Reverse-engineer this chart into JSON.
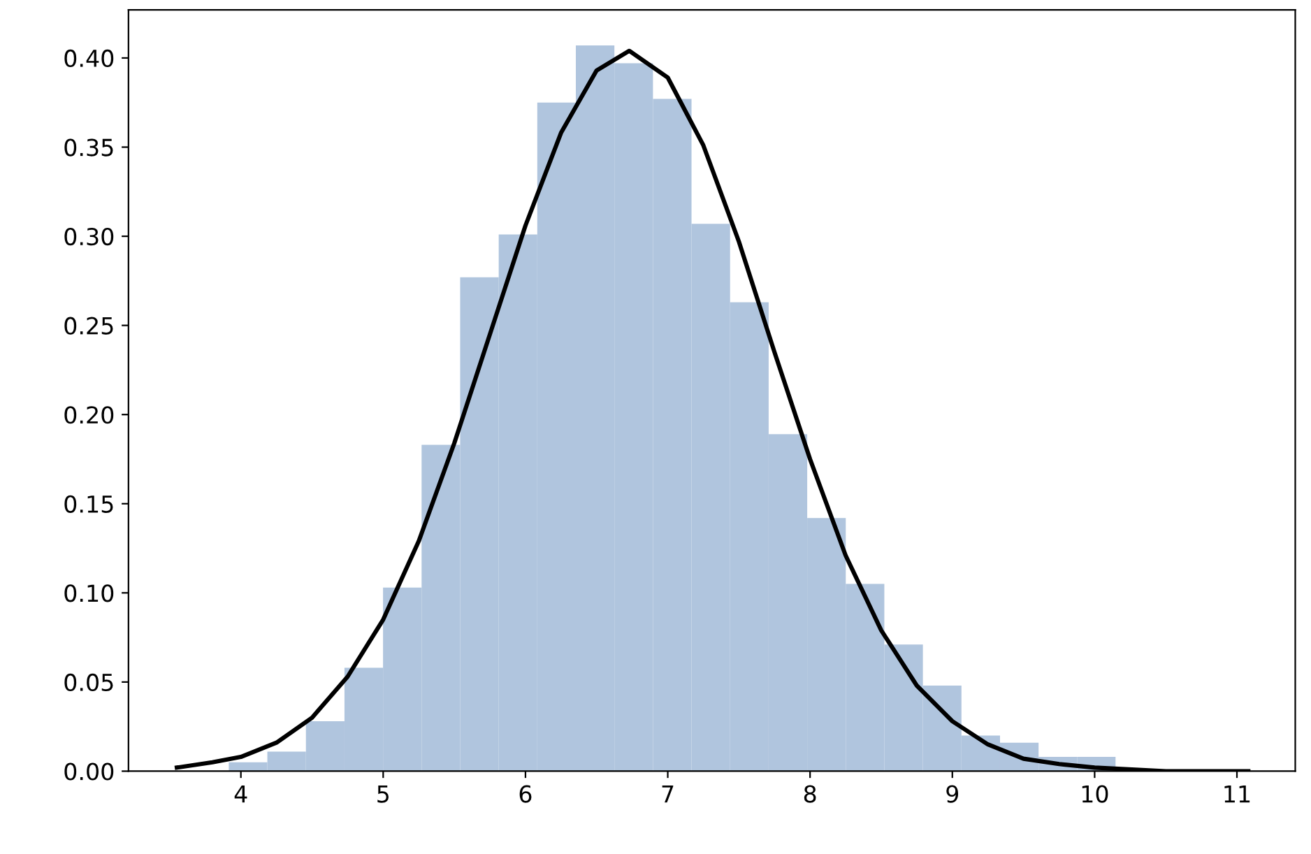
{
  "chart_data": {
    "type": "histogram",
    "series": [
      {
        "color": "#b0c5de",
        "bins": [
          3.915,
          4.186,
          4.457,
          4.728,
          4.999,
          5.27,
          5.541,
          5.812,
          6.083,
          6.354,
          6.625,
          6.896,
          7.167,
          7.438,
          7.709,
          7.98,
          8.251,
          8.522,
          8.793,
          9.064,
          9.335,
          9.606,
          9.877,
          10.147
        ],
        "values": [
          0.005,
          0.011,
          0.028,
          0.058,
          0.103,
          0.183,
          0.277,
          0.301,
          0.375,
          0.407,
          0.397,
          0.377,
          0.307,
          0.263,
          0.189,
          0.142,
          0.105,
          0.071,
          0.048,
          0.02,
          0.016,
          0.008,
          0.008
        ]
      },
      {
        "type": "line",
        "color": "#000000",
        "x": [
          3.55,
          3.8,
          4.0,
          4.25,
          4.5,
          4.75,
          5.0,
          5.25,
          5.5,
          5.75,
          6.0,
          6.25,
          6.5,
          6.73,
          7.0,
          7.25,
          7.5,
          7.75,
          8.0,
          8.25,
          8.5,
          8.75,
          9.0,
          9.25,
          9.5,
          9.75,
          10.0,
          10.5,
          11.08
        ],
        "values": [
          0.002,
          0.005,
          0.008,
          0.016,
          0.03,
          0.053,
          0.085,
          0.129,
          0.184,
          0.245,
          0.306,
          0.358,
          0.393,
          0.404,
          0.389,
          0.351,
          0.297,
          0.235,
          0.175,
          0.121,
          0.079,
          0.048,
          0.028,
          0.015,
          0.007,
          0.004,
          0.002,
          0.0,
          0.0
        ]
      }
    ],
    "xlim": [
      3.21,
      11.41
    ],
    "ylim": [
      0,
      0.427
    ],
    "xticks": [
      4,
      5,
      6,
      7,
      8,
      9,
      10,
      11
    ],
    "yticks": [
      {
        "value": 0,
        "label": "0.00"
      },
      {
        "value": 0.05,
        "label": "0.05"
      },
      {
        "value": 0.1,
        "label": "0.10"
      },
      {
        "value": 0.15,
        "label": "0.15"
      },
      {
        "value": 0.2,
        "label": "0.20"
      },
      {
        "value": 0.25,
        "label": "0.25"
      },
      {
        "value": 0.3,
        "label": "0.30"
      },
      {
        "value": 0.35,
        "label": "0.35"
      },
      {
        "value": 0.4,
        "label": "0.40"
      }
    ],
    "grid": false,
    "legend": false
  }
}
